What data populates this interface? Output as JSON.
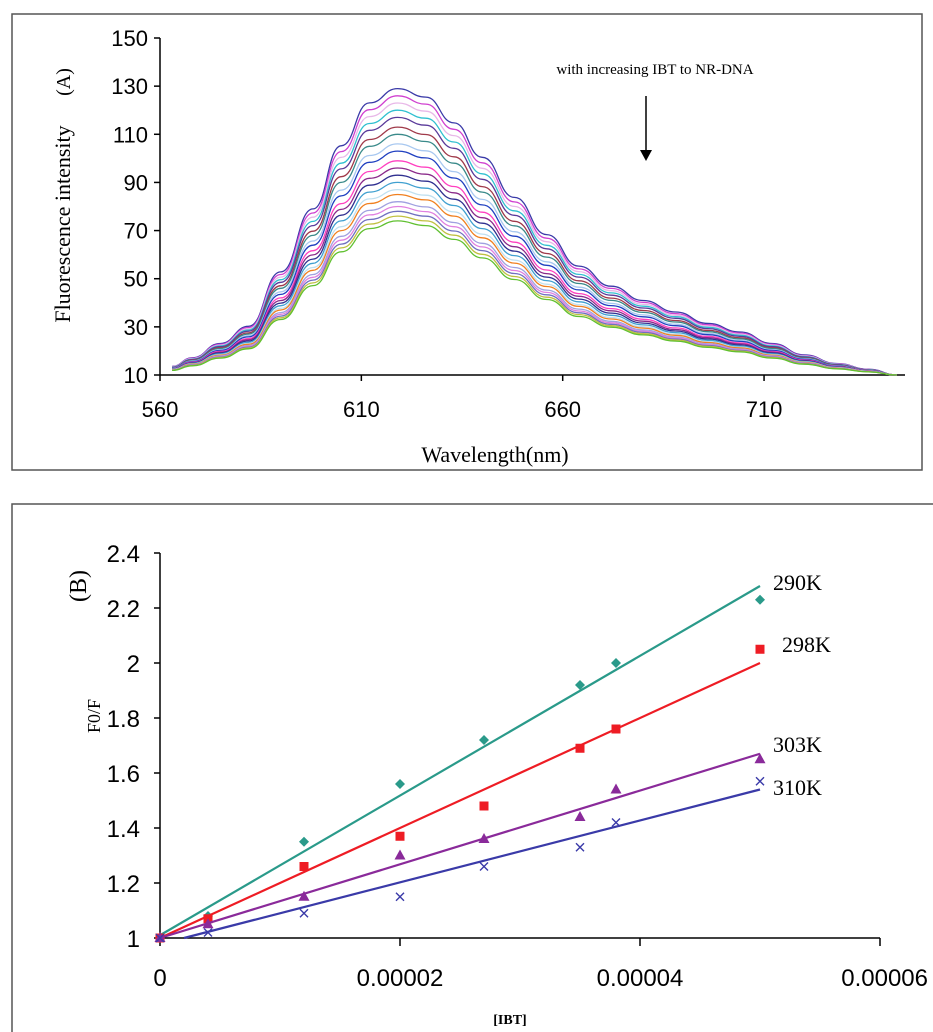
{
  "chart_data": [
    {
      "type": "line",
      "panel_label": "(A)",
      "xlabel": "Wavelength(nm)",
      "ylabel": "Fluorescence intensity",
      "xlim": [
        560,
        745
      ],
      "ylim": [
        10,
        150
      ],
      "x_ticks": [
        560,
        610,
        660,
        710
      ],
      "y_ticks": [
        10,
        30,
        50,
        70,
        90,
        110,
        130,
        150
      ],
      "annotation": "with increasing IBT to NR-DNA",
      "grid": false,
      "x": [
        563,
        568,
        575,
        582,
        590,
        598,
        605,
        612,
        619,
        626,
        633,
        640,
        648,
        656,
        664,
        672,
        680,
        688,
        696,
        704,
        712,
        720,
        728,
        736,
        743
      ],
      "profile": [
        0.03,
        0.06,
        0.11,
        0.17,
        0.36,
        0.58,
        0.8,
        0.95,
        1.0,
        0.97,
        0.88,
        0.76,
        0.62,
        0.49,
        0.38,
        0.31,
        0.26,
        0.22,
        0.18,
        0.15,
        0.11,
        0.07,
        0.04,
        0.02,
        0.0
      ],
      "series": [
        {
          "peak": 129,
          "color": "#3a3aa8"
        },
        {
          "peak": 126,
          "color": "#d040d0"
        },
        {
          "peak": 123,
          "color": "#e8b8e8"
        },
        {
          "peak": 120,
          "color": "#30c0d0"
        },
        {
          "peak": 117,
          "color": "#5a3a9a"
        },
        {
          "peak": 113,
          "color": "#a03a4a"
        },
        {
          "peak": 110,
          "color": "#3a8a8a"
        },
        {
          "peak": 106,
          "color": "#a8c8f0"
        },
        {
          "peak": 103,
          "color": "#2040c0"
        },
        {
          "peak": 99,
          "color": "#ff40c0"
        },
        {
          "peak": 96,
          "color": "#8a2a8a"
        },
        {
          "peak": 93,
          "color": "#303090"
        },
        {
          "peak": 90,
          "color": "#40a0d0"
        },
        {
          "peak": 87,
          "color": "#c0e0f0"
        },
        {
          "peak": 85,
          "color": "#f08020"
        },
        {
          "peak": 82,
          "color": "#a0a0e0"
        },
        {
          "peak": 80,
          "color": "#e080e0"
        },
        {
          "peak": 78,
          "color": "#7070c0"
        },
        {
          "peak": 76,
          "color": "#c0c040"
        },
        {
          "peak": 74,
          "color": "#60c030"
        }
      ]
    },
    {
      "type": "scatter",
      "panel_label": "(B)",
      "xlabel": "[IBT]",
      "ylabel": "F0/F",
      "xlim": [
        0,
        6e-05
      ],
      "ylim": [
        1,
        2.4
      ],
      "x_ticks": [
        "0",
        "0.00002",
        "0.00004",
        "0.00006"
      ],
      "y_ticks": [
        "1",
        "1.2",
        "1.4",
        "1.6",
        "1.8",
        "2",
        "2.2",
        "2.4"
      ],
      "grid": false,
      "series": [
        {
          "name": "290K",
          "color": "#2a9a8a",
          "marker": "diamond",
          "x": [
            0,
            4e-06,
            1.2e-05,
            2e-05,
            2.7e-05,
            3.5e-05,
            3.8e-05,
            5e-05
          ],
          "y": [
            1.0,
            1.08,
            1.35,
            1.56,
            1.72,
            1.92,
            2.0,
            2.23
          ],
          "fit": [
            [
              0,
              1.01
            ],
            [
              5e-05,
              2.28
            ]
          ]
        },
        {
          "name": "298K",
          "color": "#ee1c24",
          "marker": "square",
          "x": [
            0,
            4e-06,
            1.2e-05,
            2e-05,
            2.7e-05,
            3.5e-05,
            3.8e-05,
            5e-05
          ],
          "y": [
            1.0,
            1.07,
            1.26,
            1.37,
            1.48,
            1.69,
            1.76,
            2.05
          ],
          "fit": [
            [
              0,
              1.0
            ],
            [
              5e-05,
              2.0
            ]
          ]
        },
        {
          "name": "303K",
          "color": "#8a2a9a",
          "marker": "triangle",
          "x": [
            0,
            4e-06,
            1.2e-05,
            2e-05,
            2.7e-05,
            3.5e-05,
            3.8e-05,
            5e-05
          ],
          "y": [
            1.0,
            1.05,
            1.15,
            1.3,
            1.36,
            1.44,
            1.54,
            1.65
          ],
          "fit": [
            [
              0,
              1.0
            ],
            [
              5e-05,
              1.67
            ]
          ]
        },
        {
          "name": "310K",
          "color": "#3a3aa8",
          "marker": "x",
          "x": [
            0,
            4e-06,
            1.2e-05,
            2e-05,
            2.7e-05,
            3.5e-05,
            3.8e-05,
            5e-05
          ],
          "y": [
            1.0,
            1.02,
            1.09,
            1.15,
            1.26,
            1.33,
            1.42,
            1.57
          ],
          "fit": [
            [
              2e-06,
              1.0
            ],
            [
              5e-05,
              1.54
            ]
          ]
        }
      ]
    }
  ]
}
